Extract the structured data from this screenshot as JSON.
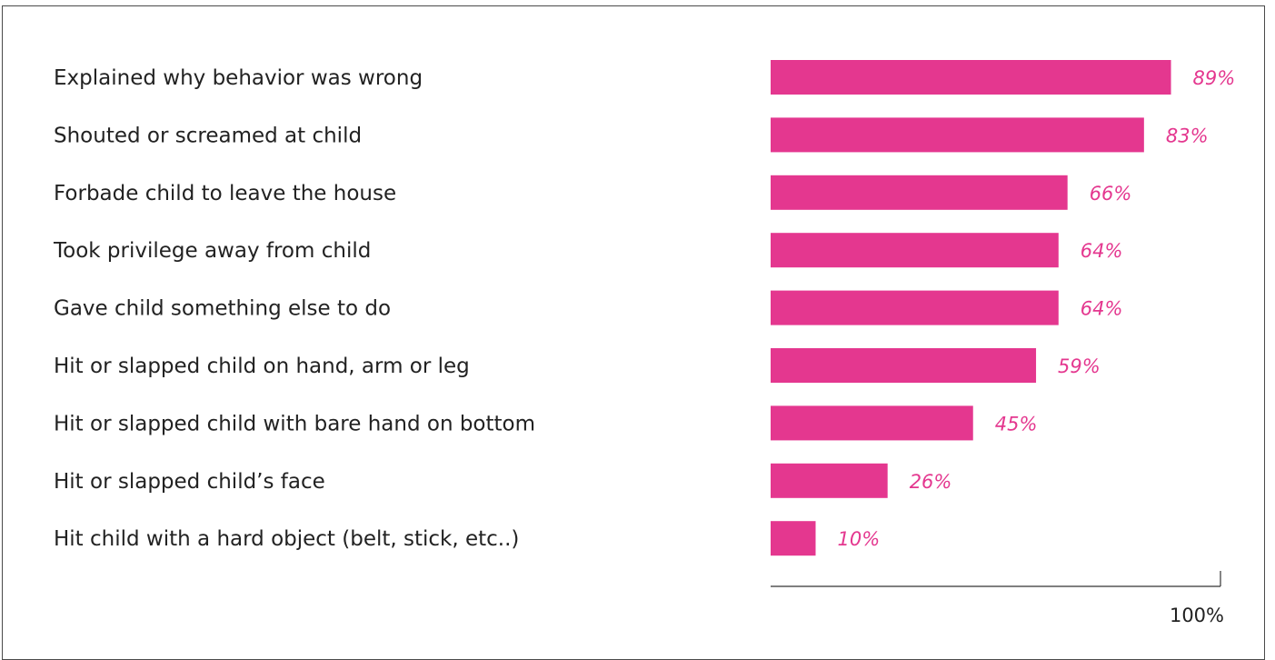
{
  "chart_data": {
    "type": "bar",
    "orientation": "horizontal",
    "categories": [
      "Explained why behavior was wrong",
      "Shouted or screamed at child",
      "Forbade child to leave the house",
      "Took privilege away from child",
      "Gave child something else to do",
      "Hit or slapped child on hand, arm or leg",
      "Hit or slapped child with bare hand on bottom",
      "Hit or slapped child’s face",
      "Hit child with a hard object (belt, stick, etc..)"
    ],
    "values": [
      89,
      83,
      66,
      64,
      64,
      59,
      45,
      26,
      10
    ],
    "value_labels": [
      "89%",
      "83%",
      "66%",
      "64%",
      "64%",
      "59%",
      "45%",
      "26%",
      "10%"
    ],
    "xlim": [
      0,
      100
    ],
    "axis_max_label": "100%",
    "grid": false,
    "legend": "none",
    "bar_color": "#e4378f",
    "label_color": "#e4378f"
  }
}
